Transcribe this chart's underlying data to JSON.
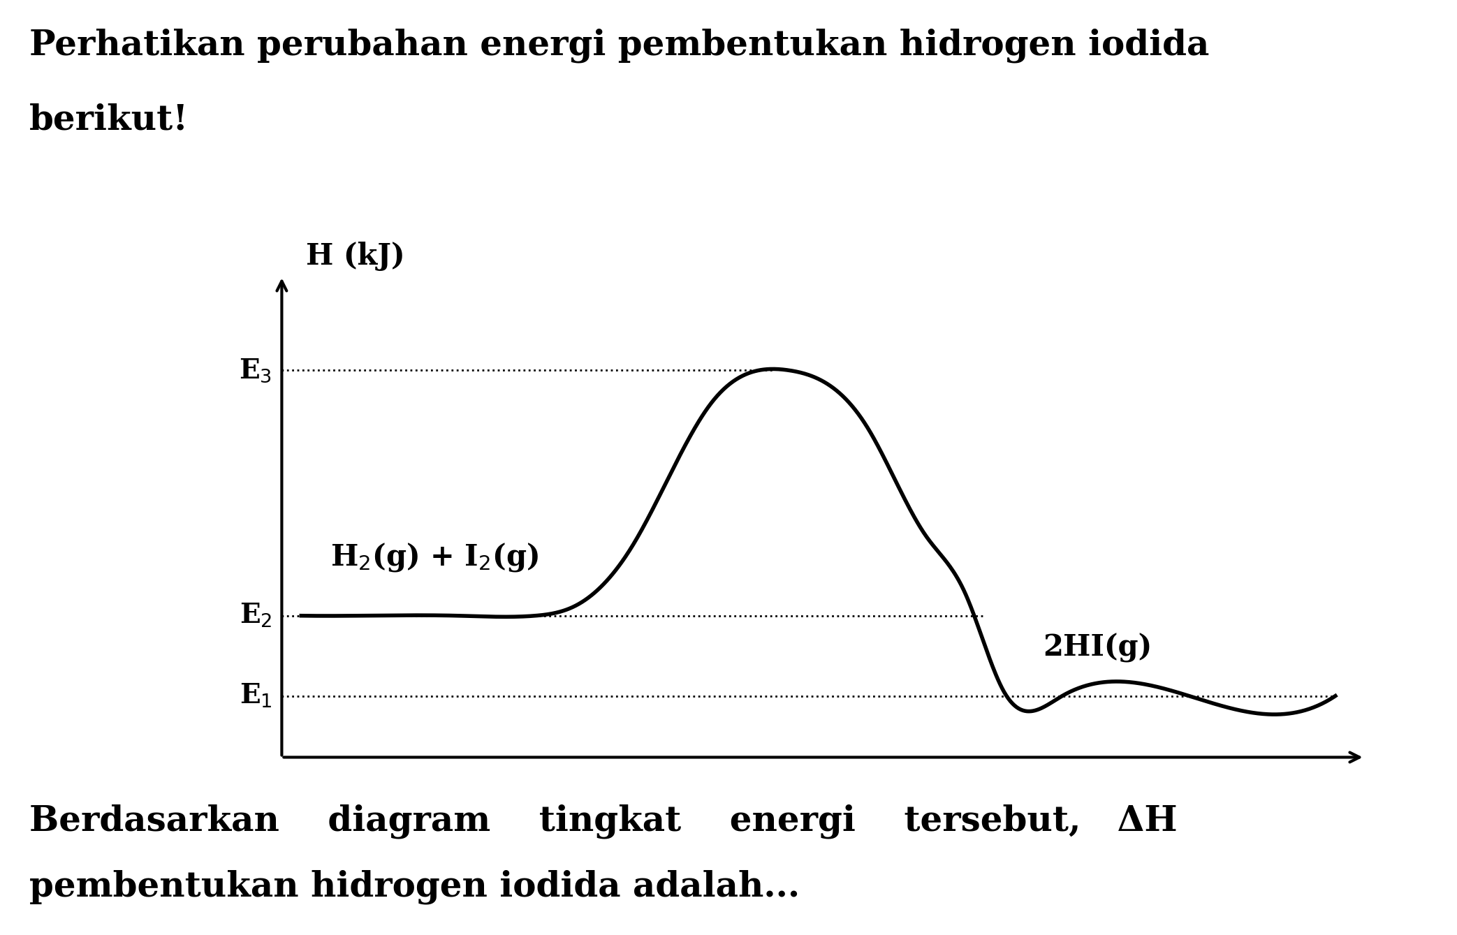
{
  "title_top_line1": "Perhatikan perubahan energi pembentukan hidrogen iodida",
  "title_top_line2": "berikut!",
  "title_bottom_line1": "Berdasarkan    diagram    tingkat    energi    tersebut,   ΔH",
  "title_bottom_line2": "pembentukan hidrogen iodida adalah...",
  "y_axis_label": "H (kJ)",
  "E1": 0.13,
  "E2": 0.3,
  "E3": 0.82,
  "label_E1": "E$_1$",
  "label_E2": "E$_2$",
  "label_E3": "E$_3$",
  "label_reactant": "H$_2$(g) + I$_2$(g)",
  "label_product": "2HI(g)",
  "background_color": "#ffffff",
  "line_color": "#000000",
  "dotted_color": "#000000",
  "font_size_title": 36,
  "font_size_labels": 30,
  "font_size_energy": 28
}
